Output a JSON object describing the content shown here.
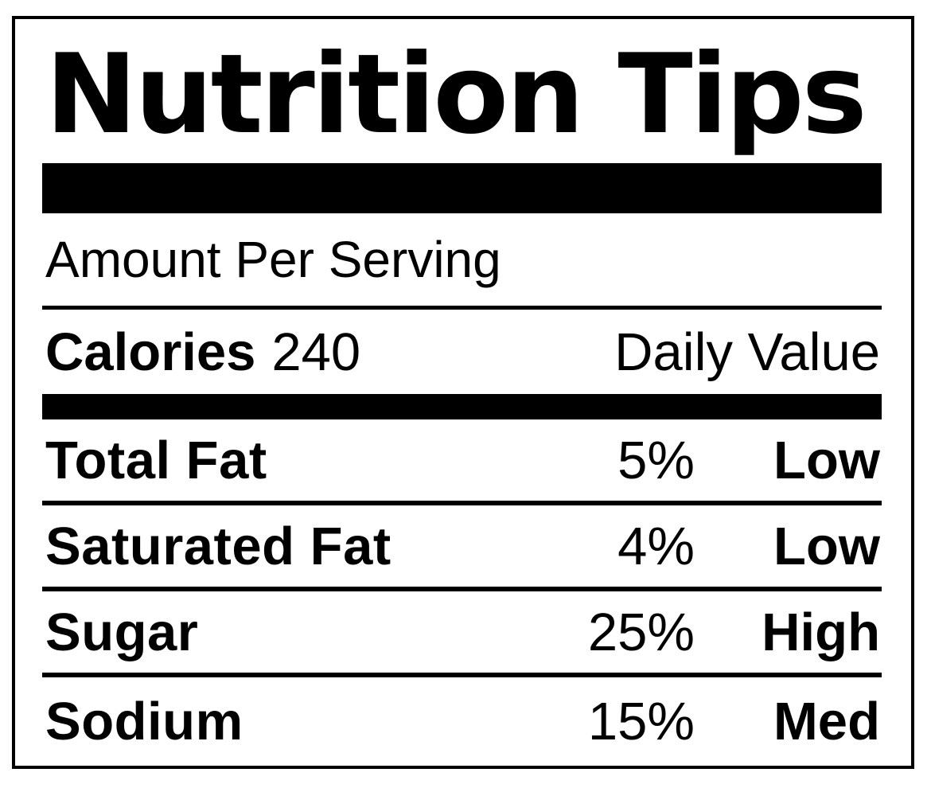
{
  "label": {
    "title": "Nutrition Tips",
    "serving_header": "Amount Per Serving",
    "calories_label": "Calories",
    "calories_value": "240",
    "daily_value_header": "Daily Value",
    "rows": [
      {
        "name": "Total Fat",
        "percent": "5%",
        "level": "Low"
      },
      {
        "name": "Saturated Fat",
        "percent": "4%",
        "level": "Low"
      },
      {
        "name": "Sugar",
        "percent": "25%",
        "level": "High"
      },
      {
        "name": "Sodium",
        "percent": "15%",
        "level": "Med"
      }
    ],
    "colors": {
      "ink": "#000000",
      "background": "#ffffff"
    }
  }
}
